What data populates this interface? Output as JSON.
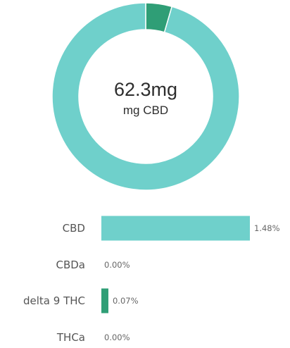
{
  "colors": {
    "cbd": "#6fd0cb",
    "thc": "#2f9e76",
    "background": "#ffffff",
    "text": "#555555"
  },
  "chart_data": [
    {
      "type": "pie",
      "variant": "donut",
      "center_value": "62.3mg",
      "center_label": "mg CBD",
      "slices": [
        {
          "label": "delta 9 THC",
          "value": 0.07,
          "color": "#2f9e76"
        },
        {
          "label": "CBD",
          "value": 1.48,
          "color": "#6fd0cb"
        }
      ],
      "start": "top",
      "direction": "clockwise"
    },
    {
      "type": "bar",
      "orientation": "horizontal",
      "categories": [
        "CBD",
        "CBDa",
        "delta 9 THC",
        "THCa"
      ],
      "values": [
        1.48,
        0.0,
        0.07,
        0.0
      ],
      "value_labels": [
        "1.48%",
        "0.00%",
        "0.07%",
        "0.00%"
      ],
      "colors": [
        "#6fd0cb",
        "#6fd0cb",
        "#2f9e76",
        "#2f9e76"
      ],
      "xlim": [
        0,
        1.48
      ]
    }
  ]
}
